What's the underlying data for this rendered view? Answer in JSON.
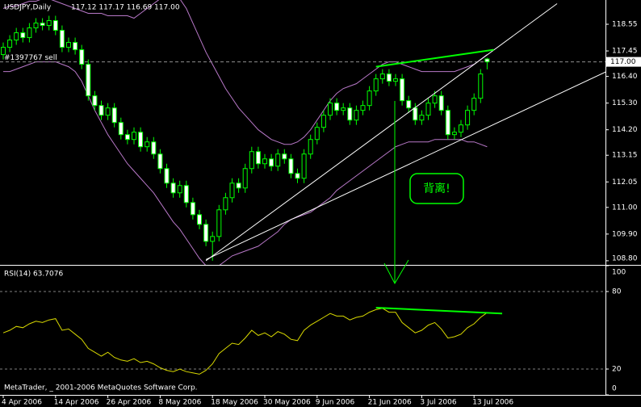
{
  "chart_data": [
    {
      "type": "candlestick",
      "title": "USDJPY,Daily",
      "ohlc_label": "117.12 117.17 116.69 117.00",
      "categories": [
        "4 Apr 2006",
        null,
        null,
        null,
        null,
        null,
        null,
        null,
        "14 Apr 2006",
        null,
        null,
        null,
        null,
        null,
        null,
        null,
        "26 Apr 2006",
        null,
        null,
        null,
        null,
        null,
        null,
        null,
        "8 May 2006",
        null,
        null,
        null,
        null,
        null,
        null,
        null,
        "18 May 2006",
        null,
        null,
        null,
        null,
        null,
        null,
        null,
        "30 May 2006",
        null,
        null,
        null,
        null,
        null,
        null,
        null,
        "9 Jun 2006",
        null,
        null,
        null,
        null,
        null,
        null,
        null,
        "21 Jun 2006",
        null,
        null,
        null,
        null,
        null,
        null,
        null,
        "3 Jul 2006",
        null,
        null,
        null,
        null,
        null,
        null,
        null,
        "13 Jul 2006",
        null,
        null
      ],
      "open": [
        117.3,
        117.6,
        117.9,
        118.2,
        118.0,
        118.4,
        118.6,
        118.5,
        118.7,
        118.3,
        117.6,
        117.8,
        117.5,
        116.9,
        115.6,
        115.2,
        114.8,
        115.1,
        114.5,
        114.0,
        113.8,
        114.1,
        113.5,
        113.7,
        113.2,
        112.6,
        112.0,
        111.6,
        111.9,
        111.2,
        110.7,
        110.3,
        109.6,
        109.8,
        110.9,
        111.4,
        112.0,
        111.8,
        112.6,
        113.3,
        112.8,
        113.0,
        112.7,
        113.2,
        113.0,
        112.4,
        112.2,
        113.2,
        113.8,
        114.3,
        114.8,
        115.3,
        115.0,
        115.1,
        114.6,
        115.0,
        115.2,
        115.8,
        116.3,
        116.5,
        116.2,
        116.3,
        115.4,
        115.1,
        114.6,
        114.8,
        115.3,
        115.6,
        115.0,
        114.0,
        114.1,
        114.4,
        115.0,
        115.5,
        117.12
      ],
      "high": [
        117.8,
        118.1,
        118.4,
        118.4,
        118.6,
        118.8,
        118.8,
        118.9,
        118.9,
        118.5,
        118.0,
        118.0,
        117.7,
        117.1,
        115.8,
        115.4,
        115.3,
        115.3,
        114.7,
        114.2,
        114.3,
        114.3,
        113.9,
        113.9,
        113.4,
        112.8,
        112.2,
        112.1,
        112.1,
        111.4,
        110.9,
        110.5,
        110.0,
        111.1,
        111.6,
        112.2,
        112.2,
        112.8,
        113.5,
        113.5,
        113.2,
        113.2,
        113.4,
        113.4,
        113.2,
        112.6,
        113.4,
        114.0,
        114.5,
        115.0,
        115.5,
        115.5,
        115.3,
        115.3,
        115.2,
        115.4,
        116.0,
        116.5,
        116.7,
        116.7,
        116.5,
        116.5,
        115.6,
        115.3,
        115.0,
        115.5,
        115.8,
        115.8,
        115.2,
        114.3,
        114.6,
        115.2,
        115.7,
        116.7,
        117.17
      ],
      "low": [
        117.1,
        117.4,
        117.7,
        117.8,
        117.8,
        118.2,
        118.3,
        118.3,
        118.1,
        117.4,
        117.4,
        117.3,
        116.7,
        115.4,
        115.0,
        114.6,
        114.6,
        114.3,
        113.8,
        113.6,
        113.6,
        113.3,
        113.3,
        113.0,
        112.4,
        111.8,
        111.4,
        111.4,
        111.0,
        110.5,
        110.1,
        109.4,
        108.8,
        109.6,
        110.7,
        111.2,
        111.6,
        111.6,
        112.4,
        112.6,
        112.6,
        112.5,
        112.5,
        112.8,
        112.2,
        112.0,
        112.0,
        113.0,
        113.6,
        114.1,
        114.6,
        114.8,
        114.8,
        114.4,
        114.4,
        114.8,
        115.0,
        115.6,
        116.1,
        116.0,
        116.0,
        115.2,
        114.9,
        114.4,
        114.4,
        114.6,
        115.1,
        114.8,
        113.8,
        113.8,
        113.9,
        114.2,
        114.8,
        115.3,
        116.69
      ],
      "close": [
        117.6,
        117.9,
        118.2,
        118.0,
        118.4,
        118.6,
        118.5,
        118.7,
        118.3,
        117.6,
        117.8,
        117.5,
        116.9,
        115.6,
        115.2,
        114.8,
        115.1,
        114.5,
        114.0,
        113.8,
        114.1,
        113.5,
        113.7,
        113.2,
        112.6,
        112.0,
        111.6,
        111.9,
        111.2,
        110.7,
        110.3,
        109.6,
        109.8,
        110.9,
        111.4,
        112.0,
        111.8,
        112.6,
        113.3,
        112.8,
        113.0,
        112.7,
        113.2,
        113.0,
        112.4,
        112.2,
        113.2,
        113.8,
        114.3,
        114.8,
        115.3,
        115.0,
        115.1,
        114.6,
        115.0,
        115.2,
        115.8,
        116.3,
        116.5,
        116.2,
        116.3,
        115.4,
        115.1,
        114.6,
        114.8,
        115.3,
        115.6,
        115.0,
        114.0,
        114.1,
        114.4,
        115.0,
        115.5,
        116.5,
        117.0
      ],
      "up_color": "#000000",
      "down_color": "#ffffff",
      "wick_color": "#00ff00",
      "bands": [
        {
          "color": "#b878c8",
          "values": [
            119.2,
            119.3,
            119.3,
            119.4,
            119.5,
            119.5,
            119.6,
            119.6,
            119.5,
            119.4,
            119.3,
            119.2,
            119.1,
            119.0,
            119.0,
            119.0,
            118.9,
            118.9,
            118.9,
            118.9,
            118.8,
            119.0,
            119.2,
            119.4,
            119.6,
            119.7,
            119.8,
            119.6,
            119.2,
            118.6,
            118.0,
            117.4,
            116.9,
            116.4,
            115.9,
            115.5,
            115.1,
            114.8,
            114.5,
            114.2,
            114.0,
            113.8,
            113.7,
            113.6,
            113.6,
            113.7,
            113.9,
            114.2,
            114.6,
            115.0,
            115.4,
            115.7,
            115.9,
            116.0,
            116.1,
            116.3,
            116.5,
            116.7,
            116.9,
            117.0,
            117.0,
            116.9,
            116.8,
            116.7,
            116.6,
            116.6,
            116.6,
            116.6,
            116.6,
            116.6,
            116.7,
            116.8,
            116.9,
            117.1,
            117.3
          ]
        },
        {
          "color": "#b878c8",
          "values": [
            116.6,
            116.6,
            116.7,
            116.8,
            116.9,
            117.0,
            117.0,
            117.0,
            117.0,
            116.9,
            116.8,
            116.6,
            116.2,
            115.6,
            115.0,
            114.5,
            114.0,
            113.6,
            113.2,
            112.8,
            112.5,
            112.2,
            111.9,
            111.6,
            111.2,
            110.8,
            110.4,
            110.1,
            109.7,
            109.3,
            108.9,
            108.6,
            108.5,
            108.6,
            108.8,
            109.0,
            109.1,
            109.2,
            109.3,
            109.4,
            109.6,
            109.8,
            110.0,
            110.3,
            110.5,
            110.6,
            110.7,
            110.8,
            111.0,
            111.2,
            111.4,
            111.7,
            111.9,
            112.1,
            112.3,
            112.5,
            112.7,
            112.9,
            113.1,
            113.3,
            113.5,
            113.6,
            113.7,
            113.7,
            113.7,
            113.7,
            113.8,
            113.8,
            113.8,
            113.8,
            113.8,
            113.7,
            113.7,
            113.6,
            113.5
          ]
        }
      ],
      "trendlines": [
        {
          "color": "#ffffff",
          "x": [
            31,
            84.7
          ],
          "y": [
            108.8,
            119.4
          ]
        },
        {
          "color": "#ffffff",
          "x": [
            31,
            97
          ],
          "y": [
            108.85,
            117.2
          ]
        },
        {
          "color": "#00ff00",
          "x": [
            57,
            75
          ],
          "y": [
            116.8,
            117.5
          ]
        }
      ],
      "order": {
        "label": "#1397767 sell",
        "price": 117
      },
      "current_price": {
        "value": 117,
        "label": "117.00"
      },
      "annotation": "背离!",
      "ylim": [
        108.63,
        119.55
      ],
      "yticks": [
        118.55,
        117.45,
        {
          "value": 116.4,
          "label": "116.40"
        },
        {
          "value": 115.3,
          "label": "115.30"
        },
        {
          "value": 114.2,
          "label": "114.20"
        },
        113.15,
        112.05,
        {
          "value": 111,
          "label": "111.00"
        },
        {
          "value": 109.9,
          "label": "109.90"
        },
        {
          "value": 108.8,
          "label": "108.80"
        }
      ],
      "grid": false
    },
    {
      "type": "line",
      "title": "RSI(14) 63.7076",
      "color": "#d8d800",
      "values": [
        48,
        50,
        53,
        52,
        55,
        57,
        56,
        58,
        59,
        50,
        51,
        47,
        43,
        36,
        33,
        30,
        33,
        29,
        27,
        26,
        28,
        25,
        26,
        24,
        21,
        19,
        18,
        20,
        18,
        17,
        16,
        19,
        24,
        32,
        36,
        40,
        39,
        44,
        50,
        46,
        48,
        45,
        49,
        47,
        43,
        42,
        50,
        54,
        57,
        60,
        63,
        61,
        61,
        58,
        60,
        61,
        64,
        66,
        67,
        64,
        64,
        56,
        52,
        48,
        50,
        54,
        56,
        51,
        44,
        45,
        47,
        52,
        55,
        60,
        63.7076
      ],
      "trendlines": [
        {
          "color": "#00ff00",
          "x": [
            57,
            76.3
          ],
          "y": [
            67.5,
            63
          ]
        }
      ],
      "ylim": [
        0,
        100
      ],
      "yticks": [
        100,
        80,
        20,
        0
      ],
      "grid": true
    }
  ],
  "footer": "MetaTrader, _ 2001-2006 MetaQuotes Software Corp."
}
